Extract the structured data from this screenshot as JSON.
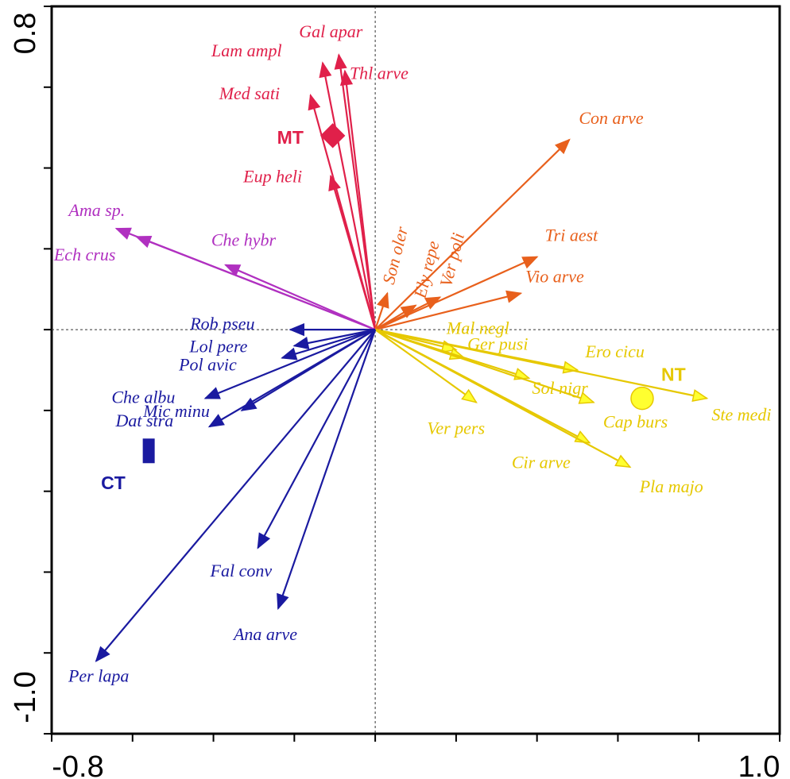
{
  "chart_data": {
    "type": "scatter",
    "subtype": "ordination-biplot",
    "title": "",
    "xlabel": "",
    "ylabel": "",
    "xlim": [
      -0.8,
      1.0
    ],
    "ylim": [
      -1.0,
      0.8
    ],
    "x_tick_labels": [
      "-0.8",
      "1.0"
    ],
    "y_tick_labels": [
      "0.8",
      "-1.0"
    ],
    "reference_lines": "dotted lines at x=0 and y=0",
    "grid": false,
    "colors": {
      "MT": "#e0204a",
      "NT": "#e6c800",
      "CT": "#1a1aa0",
      "orange": "#e8601c",
      "purple": "#b030c0",
      "arrow_yellow_fill": "#ffff30"
    },
    "species": [
      {
        "name": "Gal apar",
        "x": -0.09,
        "y": 0.68,
        "group": "MT"
      },
      {
        "name": "Lam ampl",
        "x": -0.13,
        "y": 0.66,
        "group": "MT"
      },
      {
        "name": "Thl arve",
        "x": -0.075,
        "y": 0.64,
        "group": "MT"
      },
      {
        "name": "Med sati",
        "x": -0.16,
        "y": 0.58,
        "group": "MT"
      },
      {
        "name": "Eup heli",
        "x": -0.11,
        "y": 0.38,
        "group": "MT"
      },
      {
        "name": "Con arve",
        "x": 0.48,
        "y": 0.47,
        "group": "orange"
      },
      {
        "name": "Tri aest",
        "x": 0.4,
        "y": 0.18,
        "group": "orange"
      },
      {
        "name": "Vio arve",
        "x": 0.36,
        "y": 0.09,
        "group": "orange"
      },
      {
        "name": "Son oler",
        "x": 0.03,
        "y": 0.09,
        "group": "orange"
      },
      {
        "name": "Ely repe",
        "x": 0.1,
        "y": 0.06,
        "group": "orange"
      },
      {
        "name": "Ver poli",
        "x": 0.16,
        "y": 0.08,
        "group": "orange"
      },
      {
        "name": "Ama sp.",
        "x": -0.64,
        "y": 0.25,
        "group": "purple"
      },
      {
        "name": "Ech crus",
        "x": -0.59,
        "y": 0.23,
        "group": "purple"
      },
      {
        "name": "Che hybr",
        "x": -0.37,
        "y": 0.16,
        "group": "purple"
      },
      {
        "name": "Mal negl",
        "x": 0.2,
        "y": -0.05,
        "group": "NT"
      },
      {
        "name": "Ger pusi",
        "x": 0.22,
        "y": -0.07,
        "group": "NT"
      },
      {
        "name": "Ero cicu",
        "x": 0.5,
        "y": -0.1,
        "group": "NT"
      },
      {
        "name": "Sol nigr",
        "x": 0.38,
        "y": -0.12,
        "group": "NT"
      },
      {
        "name": "Cap burs",
        "x": 0.54,
        "y": -0.18,
        "group": "NT"
      },
      {
        "name": "Ste medi",
        "x": 0.82,
        "y": -0.17,
        "group": "NT"
      },
      {
        "name": "Ver pers",
        "x": 0.25,
        "y": -0.18,
        "group": "NT"
      },
      {
        "name": "Cir arve",
        "x": 0.53,
        "y": -0.28,
        "group": "NT"
      },
      {
        "name": "Pla majo",
        "x": 0.63,
        "y": -0.34,
        "group": "NT"
      },
      {
        "name": "Rob pseu",
        "x": -0.21,
        "y": 0.0,
        "group": "CT"
      },
      {
        "name": "Lol pere",
        "x": -0.2,
        "y": -0.04,
        "group": "CT"
      },
      {
        "name": "Pol avic",
        "x": -0.23,
        "y": -0.07,
        "group": "CT"
      },
      {
        "name": "Che albu",
        "x": -0.42,
        "y": -0.17,
        "group": "CT"
      },
      {
        "name": "Mic minu",
        "x": -0.33,
        "y": -0.2,
        "group": "CT"
      },
      {
        "name": "Dat stra",
        "x": -0.41,
        "y": -0.24,
        "group": "CT"
      },
      {
        "name": "Fal conv",
        "x": -0.29,
        "y": -0.54,
        "group": "CT"
      },
      {
        "name": "Ana arve",
        "x": -0.24,
        "y": -0.69,
        "group": "CT"
      },
      {
        "name": "Per lapa",
        "x": -0.69,
        "y": -0.82,
        "group": "CT"
      }
    ],
    "treatments": [
      {
        "name": "MT",
        "x": -0.105,
        "y": 0.48,
        "marker": "diamond",
        "group": "MT"
      },
      {
        "name": "NT",
        "x": 0.66,
        "y": -0.17,
        "marker": "circle",
        "group": "NT"
      },
      {
        "name": "CT",
        "x": -0.56,
        "y": -0.3,
        "marker": "square",
        "group": "CT"
      }
    ]
  }
}
